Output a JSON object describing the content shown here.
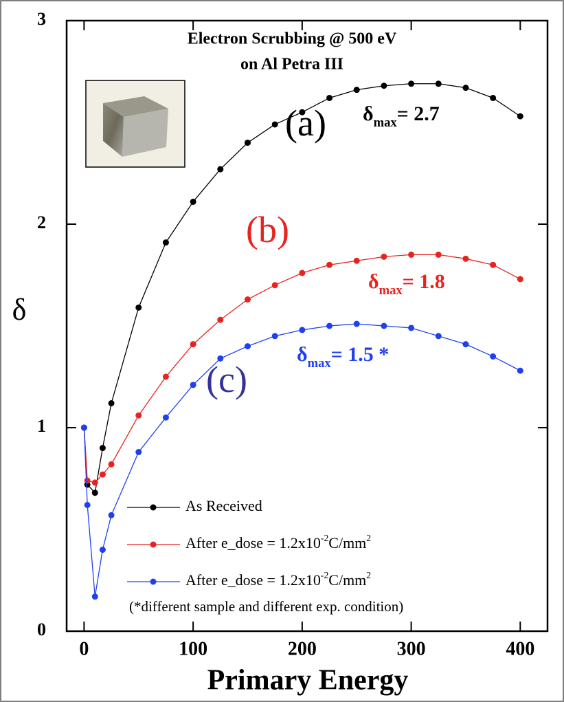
{
  "chart_data": {
    "type": "line",
    "title": [
      "Electron Scrubbing @ 500 eV",
      "on Al Petra III"
    ],
    "x_label": "Primary Energy",
    "y_label": "δ",
    "xlim": [
      -16,
      425
    ],
    "ylim": [
      0,
      3
    ],
    "xticks": [
      0,
      100,
      200,
      300,
      400
    ],
    "yticks": [
      0,
      1,
      2,
      3
    ],
    "x": [
      0,
      3,
      10,
      17,
      25,
      50,
      75,
      100,
      125,
      150,
      175,
      200,
      225,
      250,
      275,
      300,
      325,
      350,
      375,
      400
    ],
    "series": [
      {
        "name": [
          "As Received"
        ],
        "color": "#000000",
        "values": [
          1.0,
          0.72,
          0.68,
          0.9,
          1.12,
          1.59,
          1.91,
          2.11,
          2.27,
          2.4,
          2.49,
          2.55,
          2.62,
          2.66,
          2.68,
          2.69,
          2.69,
          2.67,
          2.62,
          2.53
        ]
      },
      {
        "name": [
          "After e_dose = 1.2x10",
          "-2",
          "C/mm",
          "2"
        ],
        "color": "#e8231f",
        "values": [
          1.0,
          0.74,
          0.73,
          0.77,
          0.82,
          1.06,
          1.25,
          1.41,
          1.53,
          1.63,
          1.7,
          1.76,
          1.8,
          1.82,
          1.84,
          1.85,
          1.85,
          1.83,
          1.8,
          1.73
        ]
      },
      {
        "name": [
          "After e_dose = 1.2x10",
          "-2",
          "C/mm",
          "2"
        ],
        "color": "#2040f0",
        "values": [
          1.0,
          0.62,
          0.17,
          0.4,
          0.57,
          0.88,
          1.05,
          1.21,
          1.34,
          1.4,
          1.45,
          1.48,
          1.5,
          1.51,
          1.5,
          1.49,
          1.45,
          1.41,
          1.35,
          1.28
        ]
      }
    ],
    "legend_note": "(*different sample and different exp. condition)",
    "annotations": [
      {
        "text": [
          "(a)"
        ],
        "color": "#000000"
      },
      {
        "text": [
          "δ",
          "max",
          "= 2.7"
        ],
        "color": "#000000"
      },
      {
        "text": [
          "(b)"
        ],
        "color": "#e8231f"
      },
      {
        "text": [
          "δ",
          "max",
          "= 1.8"
        ],
        "color": "#e8231f"
      },
      {
        "text": [
          "(c)"
        ],
        "color": "#333399"
      },
      {
        "text": [
          "δ",
          "max",
          "= 1.5 *"
        ],
        "color": "#2040f0"
      }
    ]
  }
}
